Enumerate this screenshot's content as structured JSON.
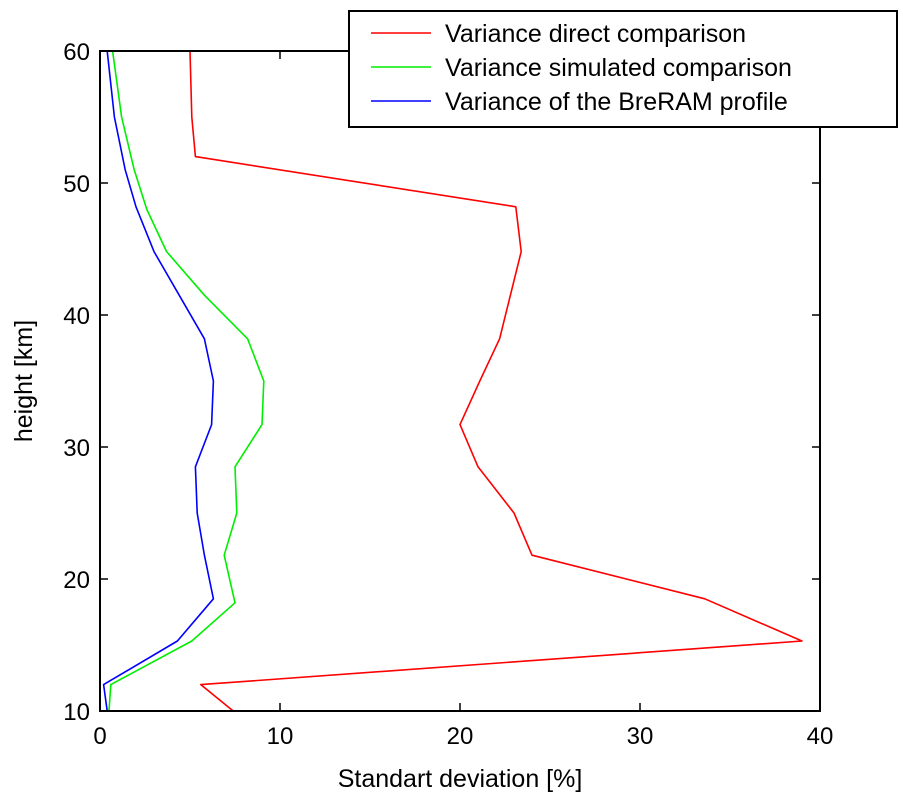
{
  "chart_data": {
    "type": "line",
    "title": "",
    "xlabel": "Standart deviation [%]",
    "ylabel": "height [km]",
    "xlim": [
      0,
      40
    ],
    "ylim": [
      10,
      60
    ],
    "xticks": [
      0,
      10,
      20,
      30,
      40
    ],
    "yticks": [
      10,
      20,
      30,
      40,
      50,
      60
    ],
    "grid": false,
    "legend_position": "top-right",
    "series": [
      {
        "name": "Variance direct comparison",
        "color": "#ff0000",
        "x": [
          7.4,
          5.6,
          39.0,
          33.6,
          24.0,
          23.0,
          21.0,
          20.0,
          21.1,
          22.2,
          22.8,
          23.4,
          23.1,
          5.3,
          5.1,
          5.0
        ],
        "y": [
          10.0,
          12.0,
          15.3,
          18.5,
          21.8,
          25.0,
          28.5,
          31.7,
          35.0,
          38.2,
          41.5,
          44.8,
          48.2,
          52.0,
          55.0,
          60.0
        ]
      },
      {
        "name": "Variance simulated comparison",
        "color": "#00ee00",
        "x": [
          0.5,
          0.6,
          5.1,
          7.5,
          6.9,
          7.6,
          7.5,
          9.0,
          9.1,
          8.2,
          5.8,
          3.7,
          2.6,
          1.9,
          1.2,
          0.7
        ],
        "y": [
          10.0,
          12.0,
          15.3,
          18.2,
          21.8,
          25.0,
          28.5,
          31.7,
          35.0,
          38.2,
          41.5,
          44.8,
          48.0,
          51.0,
          55.0,
          60.0
        ]
      },
      {
        "name": "Variance of the BreRAM profile",
        "color": "#0000ff",
        "x": [
          0.4,
          0.2,
          4.3,
          6.3,
          5.8,
          5.4,
          5.3,
          6.2,
          6.3,
          5.8,
          4.4,
          3.0,
          2.0,
          1.4,
          0.8,
          0.4
        ],
        "y": [
          10.0,
          12.0,
          15.3,
          18.5,
          21.8,
          25.0,
          28.5,
          31.7,
          35.0,
          38.2,
          41.5,
          44.8,
          48.2,
          51.0,
          55.0,
          60.0
        ]
      }
    ]
  }
}
